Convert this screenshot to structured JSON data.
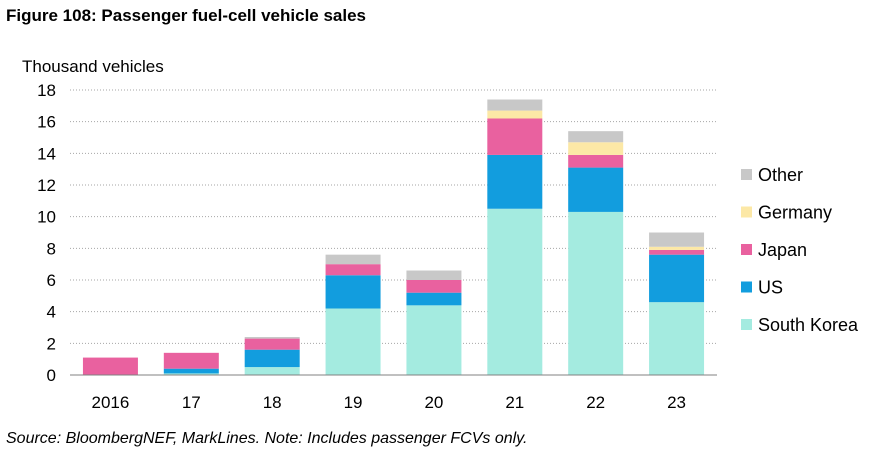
{
  "title": "Figure 108: Passenger fuel-cell vehicle sales",
  "source": "Source: BloombergNEF, MarkLines. Note: Includes passenger FCVs only.",
  "chart_data": {
    "type": "bar",
    "stacked": true,
    "ylabel": "Thousand vehicles",
    "ylim": [
      0,
      18
    ],
    "yticks": [
      0,
      2,
      4,
      6,
      8,
      10,
      12,
      14,
      16,
      18
    ],
    "grid": true,
    "categories": [
      "2016",
      "17",
      "18",
      "19",
      "20",
      "21",
      "22",
      "23"
    ],
    "series": [
      {
        "name": "South Korea",
        "color": "#a4ebe0",
        "values": [
          0.0,
          0.1,
          0.5,
          4.2,
          4.4,
          10.5,
          10.3,
          4.6
        ]
      },
      {
        "name": "US",
        "color": "#129dde",
        "values": [
          0.0,
          0.3,
          1.1,
          2.1,
          0.8,
          3.4,
          2.8,
          3.0
        ]
      },
      {
        "name": "Japan",
        "color": "#e9619f",
        "values": [
          1.1,
          1.0,
          0.7,
          0.7,
          0.8,
          2.3,
          0.8,
          0.3
        ]
      },
      {
        "name": "Germany",
        "color": "#fce8a6",
        "values": [
          0.0,
          0.0,
          0.0,
          0.0,
          0.0,
          0.5,
          0.8,
          0.2
        ]
      },
      {
        "name": "Other",
        "color": "#c8c8c8",
        "values": [
          0.0,
          0.0,
          0.1,
          0.6,
          0.6,
          0.7,
          0.7,
          0.9
        ]
      }
    ],
    "legend_position": "right"
  }
}
